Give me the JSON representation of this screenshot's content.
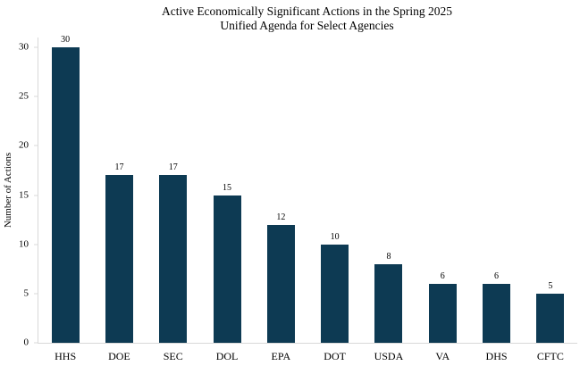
{
  "chart_data": {
    "type": "bar",
    "title": "Active Economically Significant Actions in the Spring 2025 Unified Agenda for Select Agencies",
    "title_lines": [
      "Active Economically Significant Actions in the Spring 2025",
      "Unified Agenda for Select Agencies"
    ],
    "categories": [
      "HHS",
      "DOE",
      "SEC",
      "DOL",
      "EPA",
      "DOT",
      "USDA",
      "VA",
      "DHS",
      "CFTC"
    ],
    "values": [
      30,
      17,
      17,
      15,
      12,
      10,
      8,
      6,
      6,
      5
    ],
    "xlabel": "",
    "ylabel": "Number of Actions",
    "ylim": [
      0,
      31
    ],
    "yticks": [
      0,
      5,
      10,
      15,
      20,
      25,
      30
    ],
    "grid": false,
    "legend": null,
    "value_labels": true,
    "bar_color": "#0d3a53",
    "axis_color": "#d9d9d9",
    "text_color": "#000000",
    "background_color": "#ffffff"
  }
}
